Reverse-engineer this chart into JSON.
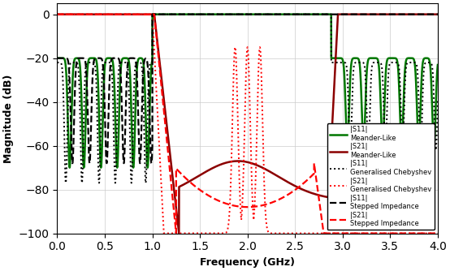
{
  "title": "",
  "xlabel": "Frequency (GHz)",
  "ylabel": "Magnitude (dB)",
  "xlim": [
    0,
    4
  ],
  "ylim": [
    -100,
    5
  ],
  "yticks": [
    0,
    -20,
    -40,
    -60,
    -80,
    -100
  ],
  "xticks": [
    0,
    0.5,
    1,
    1.5,
    2,
    2.5,
    3,
    3.5,
    4
  ],
  "figsize": [
    5.54,
    3.34
  ],
  "dpi": 100,
  "legend_entries": [
    "|S11|\nMeander-Like",
    "|S21|\nMeander-Like",
    "|S11|\nGeneralised Chebyshev",
    "|S21|\nGeneralised Chebyshev",
    "|S11|\nStepped Impedance",
    "|S21|\nStepped Impedance"
  ],
  "line_colors": [
    "#007700",
    "#8B0000",
    "#000000",
    "#FF0000",
    "#000000",
    "#FF0000"
  ],
  "line_styles": [
    "-",
    "-",
    ":",
    ":",
    "--",
    "--"
  ],
  "line_widths": [
    1.8,
    1.8,
    1.4,
    1.4,
    1.6,
    1.6
  ],
  "background_color": "#ffffff",
  "grid_color": "#cccccc"
}
